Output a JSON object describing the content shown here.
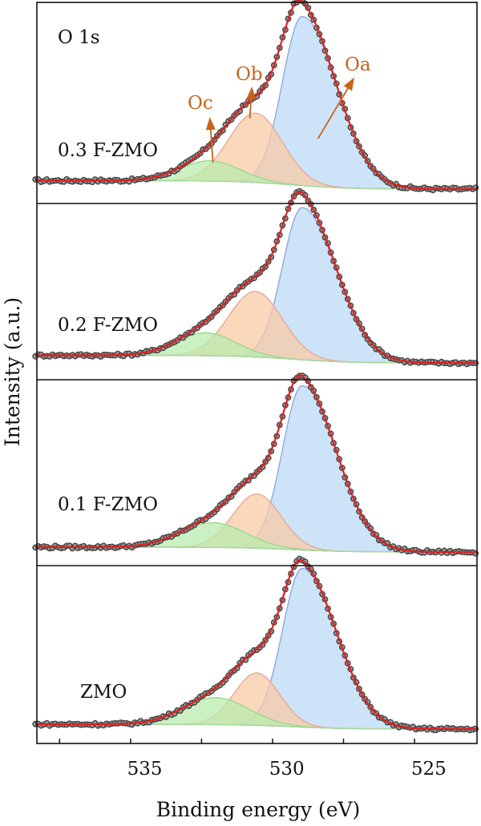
{
  "chart_data": {
    "type": "line",
    "xlabel": "Binding energy (eV)",
    "ylabel": "Intensity (a.u.)",
    "xlim": [
      538.8,
      523.3
    ],
    "x_reversed": true,
    "x_ticks": [
      535,
      530,
      525
    ],
    "grid": false,
    "core_level_label": "O 1s",
    "fit_line_color": "#e02020",
    "data_marker_color": "#444444",
    "spectra": [
      {
        "name": "0.3 F-ZMO",
        "baseline": 0.05,
        "components": [
          {
            "name": "Oa",
            "center": 529.45,
            "height": 1.0,
            "width": 0.7,
            "tail": 1.2,
            "color": "#bcd9f5"
          },
          {
            "name": "Ob",
            "center": 531.1,
            "height": 0.41,
            "width": 0.95,
            "tail": 0.95,
            "color": "#f7cba6"
          },
          {
            "name": "Oc",
            "center": 532.7,
            "height": 0.12,
            "width": 1.05,
            "tail": 1.05,
            "color": "#b9ecaf"
          }
        ]
      },
      {
        "name": "0.2 F-ZMO",
        "baseline": 0.05,
        "components": [
          {
            "name": "Oa",
            "center": 529.45,
            "height": 1.0,
            "width": 0.7,
            "tail": 1.2,
            "color": "#bcd9f5"
          },
          {
            "name": "Ob",
            "center": 531.1,
            "height": 0.43,
            "width": 0.95,
            "tail": 0.95,
            "color": "#f7cba6"
          },
          {
            "name": "Oc",
            "center": 532.85,
            "height": 0.15,
            "width": 1.05,
            "tail": 1.05,
            "color": "#b9ecaf"
          }
        ]
      },
      {
        "name": "0.1 F-ZMO",
        "baseline": 0.03,
        "components": [
          {
            "name": "Oa",
            "center": 529.45,
            "height": 1.0,
            "width": 0.7,
            "tail": 1.2,
            "color": "#bcd9f5"
          },
          {
            "name": "Ob",
            "center": 531.05,
            "height": 0.33,
            "width": 0.85,
            "tail": 0.85,
            "color": "#f7cba6"
          },
          {
            "name": "Oc",
            "center": 532.6,
            "height": 0.15,
            "width": 1.15,
            "tail": 1.15,
            "color": "#b9ecaf"
          }
        ]
      },
      {
        "name": "ZMO",
        "baseline": 0.03,
        "components": [
          {
            "name": "Oa",
            "center": 529.45,
            "height": 1.0,
            "width": 0.7,
            "tail": 1.2,
            "color": "#bcd9f5"
          },
          {
            "name": "Ob",
            "center": 531.05,
            "height": 0.33,
            "width": 0.8,
            "tail": 0.8,
            "color": "#f7cba6"
          },
          {
            "name": "Oc",
            "center": 532.5,
            "height": 0.17,
            "width": 1.15,
            "tail": 1.15,
            "color": "#b9ecaf"
          }
        ]
      }
    ],
    "annotations": [
      {
        "text": "Oc",
        "color": "#c8621a",
        "x": 533.6,
        "y_rel": 0.86
      },
      {
        "text": "Ob",
        "color": "#c8621a",
        "x": 531.6,
        "y_rel": 1.0
      },
      {
        "text": "Oa",
        "color": "#c8621a",
        "x": 527.4,
        "y_rel": 0.97
      }
    ]
  }
}
